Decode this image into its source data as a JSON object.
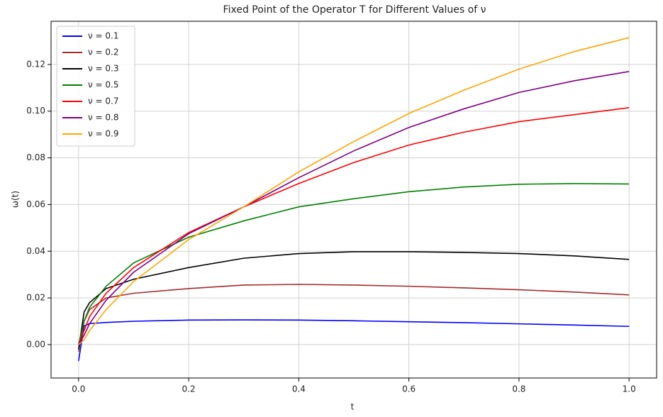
{
  "chart_data": {
    "type": "line",
    "title": "Fixed Point of the Operator T for Different Values of ν",
    "x_label": "t",
    "y_label": "ω(t)",
    "x": [
      0,
      0.01,
      0.02,
      0.05,
      0.1,
      0.2,
      0.3,
      0.4,
      0.5,
      0.6,
      0.7,
      0.8,
      0.9,
      1.0
    ],
    "series": [
      {
        "name": "ν = 0.1",
        "color": "#0000ff",
        "values": [
          -0.007,
          0.008,
          0.009,
          0.0095,
          0.01,
          0.0105,
          0.0106,
          0.0105,
          0.0102,
          0.0098,
          0.0094,
          0.0089,
          0.0084,
          0.0078
        ]
      },
      {
        "name": "ν = 0.2",
        "color": "#a52a2a",
        "values": [
          -0.003,
          0.01,
          0.015,
          0.02,
          0.022,
          0.024,
          0.0255,
          0.0258,
          0.0255,
          0.025,
          0.0243,
          0.0235,
          0.0225,
          0.0213
        ]
      },
      {
        "name": "ν = 0.3",
        "color": "#000000",
        "values": [
          -0.002,
          0.014,
          0.018,
          0.024,
          0.028,
          0.033,
          0.037,
          0.039,
          0.0398,
          0.0398,
          0.0395,
          0.039,
          0.038,
          0.0365
        ]
      },
      {
        "name": "ν = 0.5",
        "color": "#008000",
        "values": [
          0,
          0.01,
          0.016,
          0.025,
          0.035,
          0.046,
          0.053,
          0.059,
          0.0625,
          0.0655,
          0.0675,
          0.0687,
          0.069,
          0.0688
        ]
      },
      {
        "name": "ν = 0.7",
        "color": "#ff0000",
        "values": [
          0,
          0.006,
          0.012,
          0.022,
          0.033,
          0.048,
          0.059,
          0.069,
          0.078,
          0.0855,
          0.091,
          0.0955,
          0.0985,
          0.1015
        ]
      },
      {
        "name": "ν = 0.8",
        "color": "#800080",
        "values": [
          0,
          0.004,
          0.009,
          0.019,
          0.031,
          0.0475,
          0.059,
          0.0715,
          0.083,
          0.093,
          0.101,
          0.108,
          0.113,
          0.117
        ]
      },
      {
        "name": "ν = 0.9",
        "color": "#ffa500",
        "values": [
          0,
          0.002,
          0.006,
          0.015,
          0.027,
          0.045,
          0.059,
          0.074,
          0.087,
          0.099,
          0.109,
          0.118,
          0.1255,
          0.1315
        ]
      }
    ],
    "xlim": [
      -0.05,
      1.05
    ],
    "ylim": [
      -0.0143,
      0.1385
    ],
    "xticks": [
      {
        "value": 0,
        "label": "0.0"
      },
      0.2,
      0.4,
      0.6,
      0.8,
      {
        "value": 1,
        "label": "1.0"
      }
    ],
    "yticks": [
      {
        "value": 0,
        "label": "0.00"
      },
      0.02,
      0.04,
      0.06,
      0.08,
      {
        "value": 0.1,
        "label": "0.10"
      },
      0.12
    ],
    "grid": true,
    "legend": "upper-left"
  }
}
